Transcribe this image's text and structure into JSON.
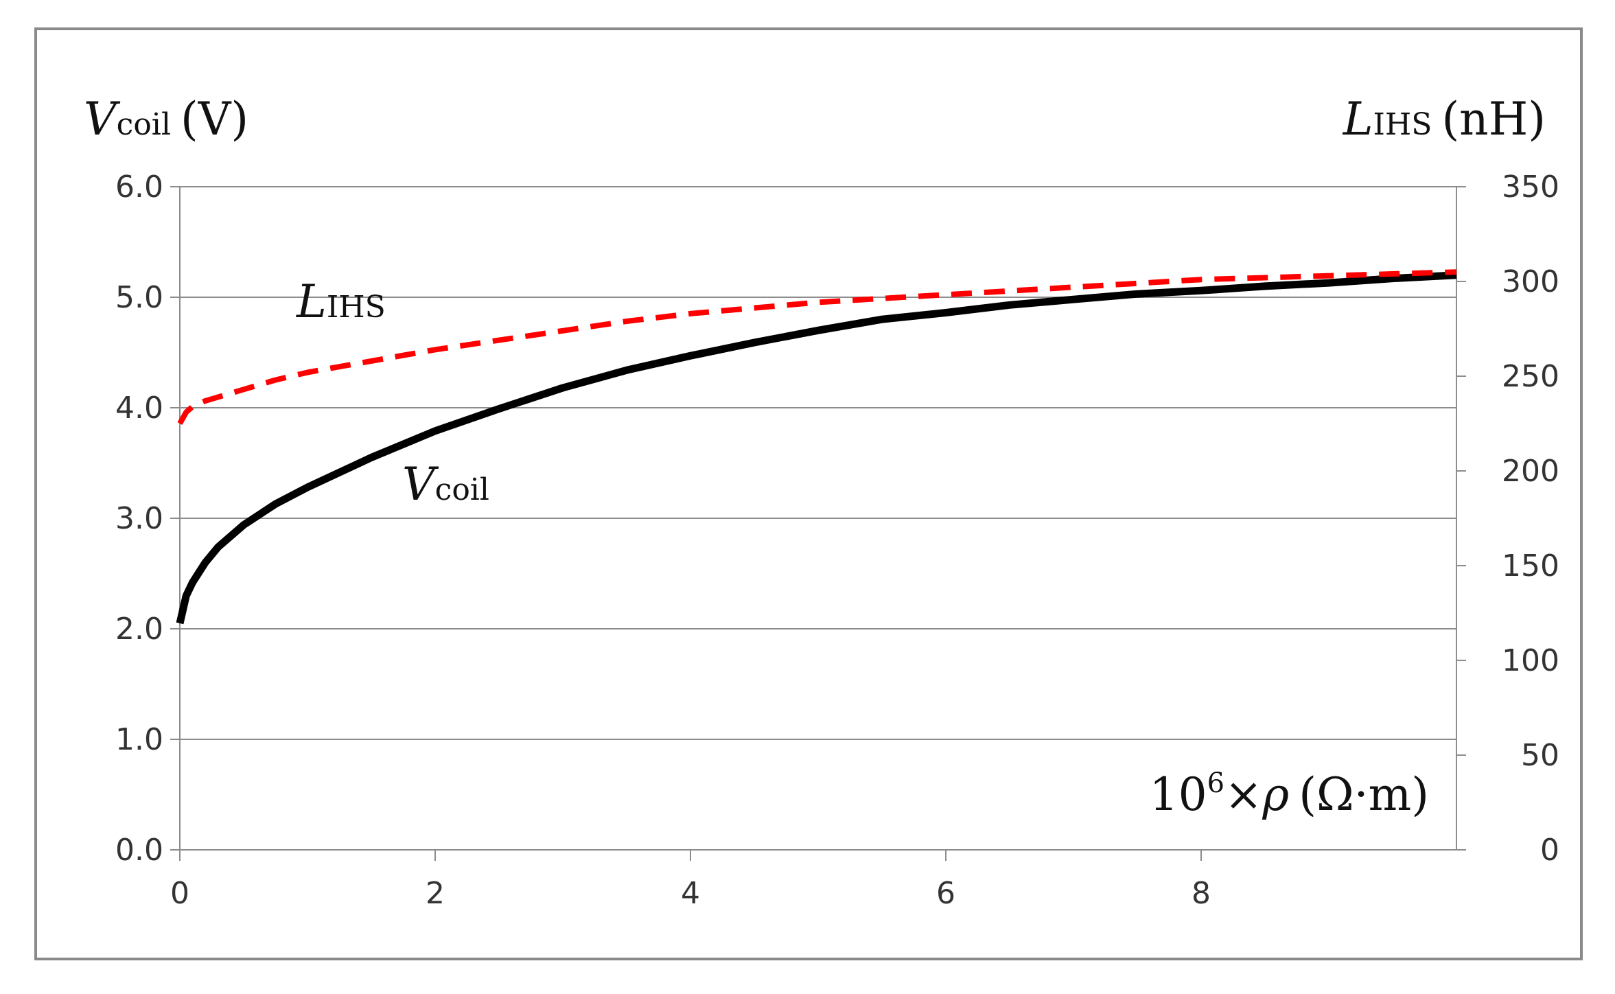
{
  "chart_data": {
    "type": "line",
    "left_axis": {
      "symbol": "V",
      "subscript": "coil",
      "unit": "(V)",
      "ylim": [
        0,
        6
      ],
      "ticks": [
        "0.0",
        "1.0",
        "2.0",
        "3.0",
        "4.0",
        "5.0",
        "6.0"
      ]
    },
    "right_axis": {
      "symbol": "L",
      "subscript": "IHS",
      "unit": "(nH)",
      "ylim": [
        0,
        350
      ],
      "ticks": [
        "0",
        "50",
        "100",
        "150",
        "200",
        "250",
        "300",
        "350"
      ]
    },
    "x_axis": {
      "label_prefix": "10",
      "label_sup": "6",
      "label_mid": "×",
      "label_symbol": "ρ",
      "label_unit": "(Ω·m)",
      "xlim": [
        0,
        10
      ],
      "ticks": [
        "0",
        "2",
        "4",
        "6",
        "8"
      ]
    },
    "grid": true,
    "series": [
      {
        "name_symbol": "V",
        "name_subscript": "coil",
        "axis": "left",
        "color": "#000000",
        "style": "solid",
        "x": [
          0,
          0.05,
          0.1,
          0.2,
          0.3,
          0.5,
          0.75,
          1.0,
          1.5,
          2.0,
          2.5,
          3.0,
          3.5,
          4.0,
          4.5,
          5.0,
          5.5,
          6.0,
          6.5,
          7.0,
          7.5,
          8.0,
          8.5,
          9.0,
          9.5,
          10.0
        ],
        "y": [
          2.05,
          2.3,
          2.42,
          2.6,
          2.74,
          2.94,
          3.13,
          3.28,
          3.55,
          3.79,
          3.99,
          4.18,
          4.34,
          4.47,
          4.59,
          4.7,
          4.8,
          4.86,
          4.93,
          4.98,
          5.03,
          5.06,
          5.1,
          5.13,
          5.17,
          5.2
        ]
      },
      {
        "name_symbol": "L",
        "name_subscript": "IHS",
        "axis": "right",
        "color": "#ff0000",
        "style": "dashed",
        "x": [
          0,
          0.05,
          0.1,
          0.2,
          0.3,
          0.5,
          0.75,
          1.0,
          1.5,
          2.0,
          2.5,
          3.0,
          3.5,
          4.0,
          4.5,
          5.0,
          5.5,
          6.0,
          6.5,
          7.0,
          7.5,
          8.0,
          8.5,
          9.0,
          9.5,
          10.0
        ],
        "y": [
          225,
          231,
          234,
          237,
          239,
          243,
          248,
          252,
          258,
          264,
          269,
          274,
          279,
          283,
          286,
          289,
          291,
          293,
          295,
          297,
          299,
          301,
          302,
          303,
          304,
          305
        ]
      }
    ]
  }
}
